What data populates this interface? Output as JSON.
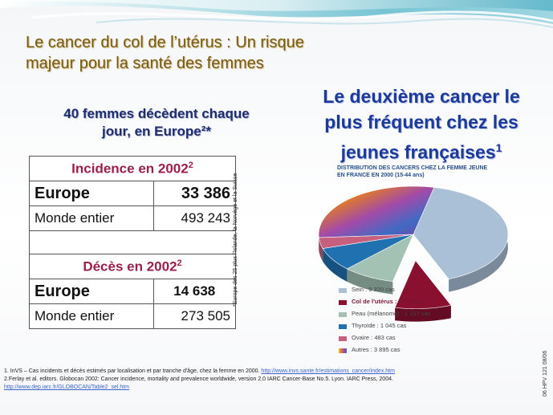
{
  "title": {
    "line1": "Le cancer du col de l’utérus : Un risque",
    "line2": "majeur pour la santé des femmes"
  },
  "left_subtitle": {
    "line1": "40 femmes décèdent chaque",
    "line2": "jour, en Europe²*"
  },
  "right_headline": {
    "line1": "Le deuxième cancer le",
    "line2": "plus fréquent chez les",
    "line3": "jeunes françaises",
    "sup": "1"
  },
  "table": {
    "incidence_header": "Incidence en 2002",
    "incidence_sup": "2",
    "europe_label": "Europe",
    "europe_incidence": "33 386",
    "world_label": "Monde entier",
    "world_incidence": "493 243",
    "deaths_header": "Décès en 2002",
    "deaths_sup": "2",
    "europe_label_2": "Europe",
    "europe_deaths": "14 638",
    "world_label_2": "Monde entier",
    "world_deaths": "273 505"
  },
  "vertical_note": "*Europe des 25 plus l'Islande, la Norvège et la Suisse",
  "side_code": "06 HPV 121 08/06",
  "footnotes": {
    "ref1": "1. InVS – Cas incidents et décès estimés par localisation et par tranche d'âge, chez la femme en 2000.",
    "ref1_link": "http://www.invs.sante.fr/estimations_cancer/index.htm",
    "ref2": "2.Ferlay et al. editors. Globocan 2002: Cancer incidence, mortality and prevalence worldwide, version 2.0 IARC Cancer-Base No.5. Lyon. IARC Press, 2004.",
    "ref2_link": "http://www.dep.iarc.fr/GLOBOCAN/Table2_sel.htm"
  },
  "chart_data": {
    "type": "pie",
    "title": "DISTRIBUTION DES CANCERS CHEZ LA FEMME JEUNE",
    "subtitle": "EN FRANCE EN 2000 (15-44 ans)",
    "slices": [
      {
        "name": "Sein",
        "label": "Sein : 5 320 cas",
        "value": 5320,
        "color": "#a9c0d6",
        "exploded": false
      },
      {
        "name": "Col de l'utérus",
        "label": "Col de l'utérus : 1 263 cas",
        "value": 1263,
        "color": "#8a1030",
        "exploded": true
      },
      {
        "name": "Peau (mélanome)",
        "label": "Peau (mélanome) : 1 167 cas",
        "value": 1167,
        "color": "#a3c2b4",
        "exploded": false
      },
      {
        "name": "Thyroïde",
        "label": "Thyroïde : 1 045 cas",
        "value": 1045,
        "color": "#2071b0",
        "exploded": false
      },
      {
        "name": "Ovaire",
        "label": "Ovaire : 483 cas",
        "value": 483,
        "color": "#c7607f",
        "exploded": false
      },
      {
        "name": "Autres",
        "label": "Autres : 3 895 cas",
        "value": 3895,
        "color": "multicolor",
        "exploded": false
      }
    ],
    "legend_position": "bottom-left"
  }
}
